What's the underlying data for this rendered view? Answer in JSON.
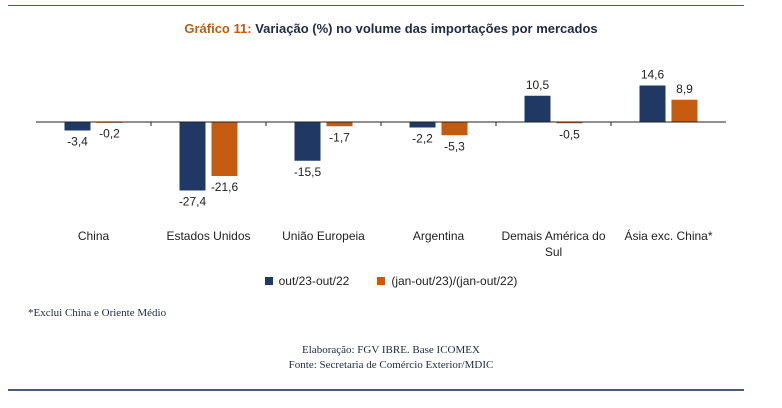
{
  "title": {
    "prefix": "Gráfico 11:",
    "main": "Variação (%)  no volume das importações por mercados"
  },
  "colors": {
    "series1": "#1f3864",
    "series2": "#c55a11"
  },
  "chart_data": {
    "type": "bar",
    "categories": [
      "China",
      "Estados Unidos",
      "União Europeia",
      "Argentina",
      "Demais América do Sul",
      "Ásia exc. China*"
    ],
    "series": [
      {
        "name": "out/23-out/22",
        "values": [
          -3.4,
          -27.4,
          -15.5,
          -2.2,
          10.5,
          14.6
        ],
        "labels": [
          "-3,4",
          "-27,4",
          "-15,5",
          "-2,2",
          "10,5",
          "14,6"
        ]
      },
      {
        "name": "(jan-out/23)/(jan-out/22)",
        "values": [
          -0.2,
          -21.6,
          -1.7,
          -5.3,
          -0.5,
          8.9
        ],
        "labels": [
          "-0,2",
          "-21,6",
          "-1,7",
          "-5,3",
          "-0,5",
          "8,9"
        ]
      }
    ],
    "ylim": [
      -30,
      16
    ],
    "grid": false,
    "legend": "bottom"
  },
  "footnote": "*Exclui China e Oriente Médio",
  "credits": {
    "line1": "Elaboração: FGV IBRE. Base ICOMEX",
    "line2": "Fonte: Secretaria de Comércio Exterior/MDIC"
  }
}
